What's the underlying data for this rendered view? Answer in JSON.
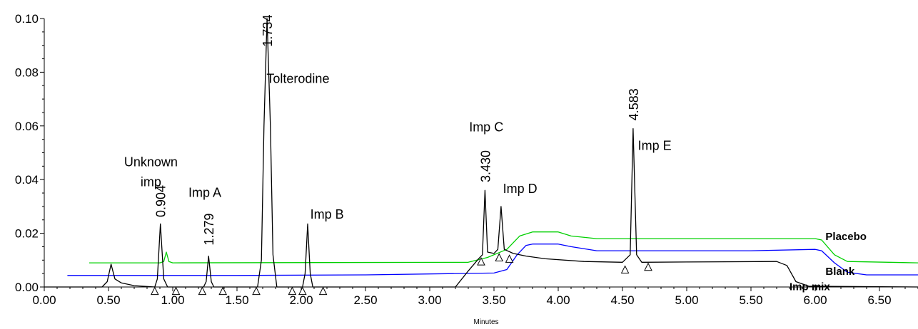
{
  "chart_data": {
    "type": "line",
    "title": "",
    "xlabel": "Minutes",
    "ylabel": "",
    "xlim": [
      0,
      6.8
    ],
    "ylim": [
      0,
      0.1
    ],
    "grid": false,
    "x_ticks": [
      "0.00",
      "0.50",
      "1.00",
      "1.50",
      "2.00",
      "2.50",
      "3.00",
      "3.50",
      "4.00",
      "4.50",
      "5.00",
      "5.50",
      "6.00",
      "6.50"
    ],
    "y_ticks": [
      "0.00",
      "0.02",
      "0.04",
      "0.06",
      "0.08",
      "0.10"
    ],
    "series": [
      {
        "name": "Placebo",
        "color": "#00d000",
        "points": [
          [
            0.35,
            0.009
          ],
          [
            0.9,
            0.009
          ],
          [
            0.93,
            0.0095
          ],
          [
            0.95,
            0.013
          ],
          [
            0.97,
            0.0095
          ],
          [
            1.0,
            0.009
          ],
          [
            3.3,
            0.0092
          ],
          [
            3.45,
            0.011
          ],
          [
            3.6,
            0.014
          ],
          [
            3.7,
            0.019
          ],
          [
            3.8,
            0.0205
          ],
          [
            4.0,
            0.0205
          ],
          [
            4.1,
            0.019
          ],
          [
            4.3,
            0.018
          ],
          [
            5.2,
            0.018
          ],
          [
            6.0,
            0.018
          ],
          [
            6.05,
            0.0175
          ],
          [
            6.15,
            0.012
          ],
          [
            6.25,
            0.0095
          ],
          [
            6.8,
            0.009
          ]
        ]
      },
      {
        "name": "Blank",
        "color": "#0000ff",
        "points": [
          [
            0.18,
            0.0043
          ],
          [
            1.5,
            0.0043
          ],
          [
            2.5,
            0.0045
          ],
          [
            3.5,
            0.0052
          ],
          [
            3.6,
            0.0065
          ],
          [
            3.68,
            0.012
          ],
          [
            3.75,
            0.0155
          ],
          [
            3.8,
            0.016
          ],
          [
            4.0,
            0.016
          ],
          [
            4.1,
            0.015
          ],
          [
            4.3,
            0.0135
          ],
          [
            5.5,
            0.0135
          ],
          [
            6.0,
            0.014
          ],
          [
            6.05,
            0.0135
          ],
          [
            6.15,
            0.009
          ],
          [
            6.25,
            0.0055
          ],
          [
            6.4,
            0.0045
          ],
          [
            6.8,
            0.0045
          ]
        ]
      },
      {
        "name": "Imp mix",
        "color": "#000000",
        "points": [
          [
            0.0,
            0.0
          ],
          [
            0.45,
            0.0
          ],
          [
            0.49,
            0.002
          ],
          [
            0.52,
            0.0085
          ],
          [
            0.55,
            0.003
          ],
          [
            0.6,
            0.0015
          ],
          [
            0.7,
            0.0005
          ],
          [
            0.86,
            0.0
          ],
          [
            0.88,
            0.003
          ],
          [
            0.904,
            0.0235
          ],
          [
            0.93,
            0.003
          ],
          [
            0.96,
            0.0
          ],
          [
            1.24,
            0.0
          ],
          [
            1.26,
            0.002
          ],
          [
            1.279,
            0.0115
          ],
          [
            1.3,
            0.002
          ],
          [
            1.32,
            0.0
          ],
          [
            1.66,
            0.0
          ],
          [
            1.69,
            0.01
          ],
          [
            1.71,
            0.06
          ],
          [
            1.734,
            0.1
          ],
          [
            1.76,
            0.06
          ],
          [
            1.78,
            0.012
          ],
          [
            1.81,
            0.0
          ],
          [
            2.01,
            0.0
          ],
          [
            2.03,
            0.005
          ],
          [
            2.05,
            0.0235
          ],
          [
            2.07,
            0.005
          ],
          [
            2.09,
            0.0
          ],
          [
            3.2,
            0.0
          ],
          [
            3.3,
            0.006
          ],
          [
            3.38,
            0.0105
          ],
          [
            3.41,
            0.012
          ],
          [
            3.43,
            0.036
          ],
          [
            3.45,
            0.013
          ],
          [
            3.5,
            0.0125
          ],
          [
            3.53,
            0.014
          ],
          [
            3.555,
            0.03
          ],
          [
            3.58,
            0.014
          ],
          [
            3.65,
            0.0125
          ],
          [
            3.75,
            0.0115
          ],
          [
            3.9,
            0.0105
          ],
          [
            4.2,
            0.0095
          ],
          [
            4.5,
            0.0092
          ],
          [
            4.56,
            0.012
          ],
          [
            4.583,
            0.059
          ],
          [
            4.61,
            0.012
          ],
          [
            4.65,
            0.0092
          ],
          [
            5.0,
            0.0093
          ],
          [
            5.7,
            0.0095
          ],
          [
            5.78,
            0.008
          ],
          [
            5.85,
            0.002
          ],
          [
            5.95,
            0.0003
          ],
          [
            6.8,
            0.0
          ]
        ]
      }
    ],
    "annotations": [
      {
        "text": "Unknown",
        "x": 0.83,
        "y": 0.045
      },
      {
        "text": "imp",
        "x": 0.83,
        "y": 0.0375
      },
      {
        "text": "0.904",
        "x": 0.904,
        "y": 0.026,
        "rotate": true
      },
      {
        "text": "Imp A",
        "x": 1.25,
        "y": 0.0335
      },
      {
        "text": "1.279",
        "x": 1.279,
        "y": 0.0155,
        "rotate": true
      },
      {
        "text": "1.734",
        "x": 1.734,
        "y": 0.0895,
        "rotate": true
      },
      {
        "text": "Tolterodine",
        "x": 1.73,
        "y": 0.076,
        "anchor": "start"
      },
      {
        "text": "Imp B",
        "x": 2.07,
        "y": 0.0255,
        "anchor": "start"
      },
      {
        "text": "Imp C",
        "x": 3.44,
        "y": 0.058
      },
      {
        "text": "3.430",
        "x": 3.43,
        "y": 0.039,
        "rotate": true
      },
      {
        "text": "Imp D",
        "x": 3.57,
        "y": 0.035,
        "anchor": "start"
      },
      {
        "text": "4.583",
        "x": 4.583,
        "y": 0.062,
        "rotate": true
      },
      {
        "text": "Imp E",
        "x": 4.62,
        "y": 0.051,
        "anchor": "start"
      }
    ],
    "series_labels": [
      {
        "text": "Placebo",
        "x": 6.08,
        "y": 0.0175
      },
      {
        "text": "Blank",
        "x": 6.08,
        "y": 0.0045
      },
      {
        "text": "Imp mix",
        "x": 5.8,
        "y": -0.0012
      }
    ],
    "baseline_markers": [
      [
        0.86,
        -0.0015
      ],
      [
        1.025,
        -0.0015
      ],
      [
        1.23,
        -0.0015
      ],
      [
        1.39,
        -0.0015
      ],
      [
        1.65,
        -0.0015
      ],
      [
        1.93,
        -0.0015
      ],
      [
        2.01,
        -0.0015
      ],
      [
        2.17,
        -0.0015
      ],
      [
        3.4,
        0.0095
      ],
      [
        3.54,
        0.011
      ],
      [
        3.62,
        0.0105
      ],
      [
        4.52,
        0.0065
      ],
      [
        4.7,
        0.0075
      ]
    ]
  }
}
